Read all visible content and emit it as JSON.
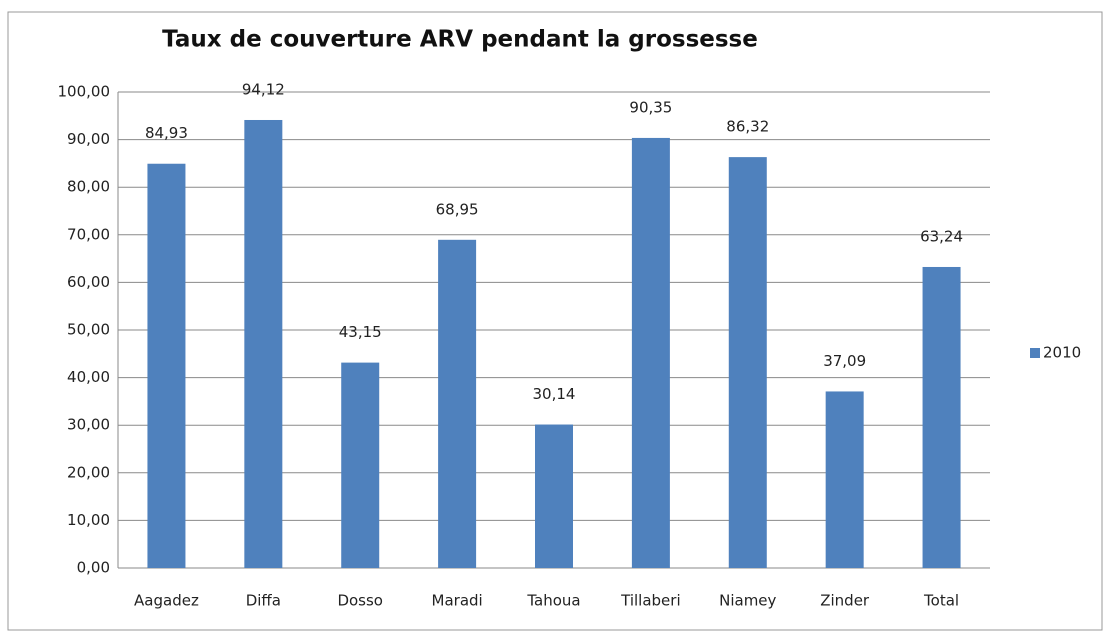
{
  "chart_data": {
    "type": "bar",
    "title": "Taux de couverture ARV pendant la grossesse",
    "categories": [
      "Aagadez",
      "Diffa",
      "Dosso",
      "Maradi",
      "Tahoua",
      "Tillaberi",
      "Niamey",
      "Zinder",
      "Total"
    ],
    "series": [
      {
        "name": "2010",
        "color": "#4f81bd",
        "values": [
          84.93,
          94.12,
          43.15,
          68.95,
          30.14,
          90.35,
          86.32,
          37.09,
          63.24
        ],
        "value_labels": [
          "84,93",
          "94,12",
          "43,15",
          "68,95",
          "30,14",
          "90,35",
          "86,32",
          "37,09",
          "63,24"
        ]
      }
    ],
    "ylim": [
      0,
      100
    ],
    "yticks": [
      {
        "value": 0,
        "label": "0,00"
      },
      {
        "value": 10,
        "label": "10,00"
      },
      {
        "value": 20,
        "label": "20,00"
      },
      {
        "value": 30,
        "label": "30,00"
      },
      {
        "value": 40,
        "label": "40,00"
      },
      {
        "value": 50,
        "label": "50,00"
      },
      {
        "value": 60,
        "label": "60,00"
      },
      {
        "value": 70,
        "label": "70,00"
      },
      {
        "value": 80,
        "label": "80,00"
      },
      {
        "value": 90,
        "label": "90,00"
      },
      {
        "value": 100,
        "label": "100,00"
      }
    ],
    "grid": true,
    "legend": "right"
  }
}
